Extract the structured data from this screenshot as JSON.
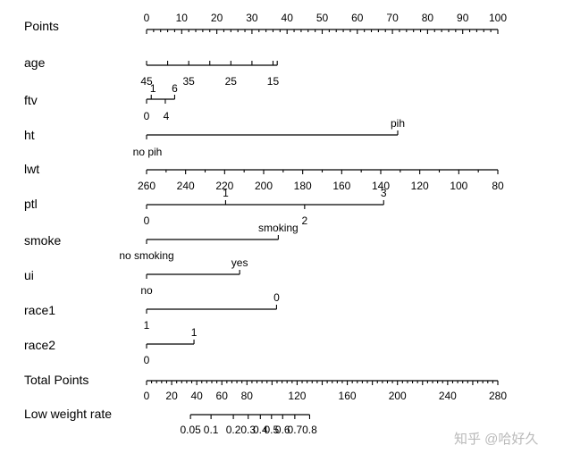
{
  "chart_data": {
    "type": "nomogram",
    "rows": [
      {
        "name": "Points",
        "kind": "scale",
        "ticks": [
          0,
          10,
          20,
          30,
          40,
          50,
          60,
          70,
          80,
          90,
          100
        ],
        "minor_step": 2,
        "tick_labels": [
          "0",
          "10",
          "20",
          "30",
          "40",
          "50",
          "60",
          "70",
          "80",
          "90",
          "100"
        ]
      },
      {
        "name": "age",
        "kind": "scale",
        "ticks": [
          45,
          40,
          35,
          30,
          25,
          20,
          15,
          14
        ],
        "tick_labels": [
          "45",
          "35",
          "25",
          "15"
        ]
      },
      {
        "name": "ftv",
        "kind": "scale",
        "ticks": [
          0,
          1,
          4,
          6
        ],
        "tick_labels": [
          "1",
          "6",
          "0",
          "4"
        ]
      },
      {
        "name": "ht",
        "kind": "categorical",
        "levels": [
          "no pih",
          "pih"
        ]
      },
      {
        "name": "lwt",
        "kind": "scale",
        "ticks": [
          260,
          240,
          220,
          200,
          180,
          160,
          140,
          120,
          100,
          80
        ],
        "tick_labels": [
          "260",
          "240",
          "220",
          "200",
          "180",
          "160",
          "140",
          "120",
          "100",
          "80"
        ]
      },
      {
        "name": "ptl",
        "kind": "scale",
        "ticks": [
          0,
          1,
          2,
          3
        ],
        "tick_labels": [
          "1",
          "3",
          "0",
          "2"
        ]
      },
      {
        "name": "smoke",
        "kind": "categorical",
        "levels": [
          "no smoking",
          "smoking"
        ]
      },
      {
        "name": "ui",
        "kind": "categorical",
        "levels": [
          "no",
          "yes"
        ]
      },
      {
        "name": "race1",
        "kind": "categorical",
        "levels": [
          "1",
          "0"
        ]
      },
      {
        "name": "race2",
        "kind": "categorical",
        "levels": [
          "0",
          "1"
        ]
      },
      {
        "name": "Total Points",
        "kind": "scale",
        "ticks": [
          0,
          20,
          40,
          60,
          80,
          120,
          160,
          200,
          240,
          280
        ],
        "minor_step": 4,
        "tick_labels": [
          "0",
          "20",
          "40",
          "60",
          "80",
          "120",
          "160",
          "200",
          "240",
          "280"
        ]
      },
      {
        "name": "Low weight rate",
        "kind": "scale",
        "ticks": [
          0.05,
          0.1,
          0.2,
          0.3,
          0.4,
          0.5,
          0.6,
          0.7,
          0.8
        ],
        "tick_labels": [
          "0.05",
          "0.1",
          "0.2",
          "0.3",
          "0.4",
          "0.5",
          "0.6",
          "0.7",
          "0.8"
        ]
      }
    ],
    "level_points": {
      "age": {
        "45": 0,
        "15": 36
      },
      "ftv": {
        "0": 0,
        "6": 8
      },
      "ht": {
        "no pih": 0,
        "pih": 71.5
      },
      "lwt": {
        "260": 0,
        "80": 100
      },
      "ptl": {
        "0": 0,
        "1": 22.5,
        "2": 45,
        "3": 67.5
      },
      "smoke": {
        "no smoking": 0,
        "smoking": 37.5
      },
      "ui": {
        "no": 0,
        "yes": 26.5
      },
      "race1": {
        "1": 0,
        "0": 37
      },
      "race2": {
        "0": 0,
        "1": 13.5
      }
    },
    "total_points_range": [
      0,
      280
    ],
    "low_weight_rate_total_points": {
      "0.05": 35,
      "0.8": 130
    }
  },
  "watermark": "知乎 @哈好久"
}
